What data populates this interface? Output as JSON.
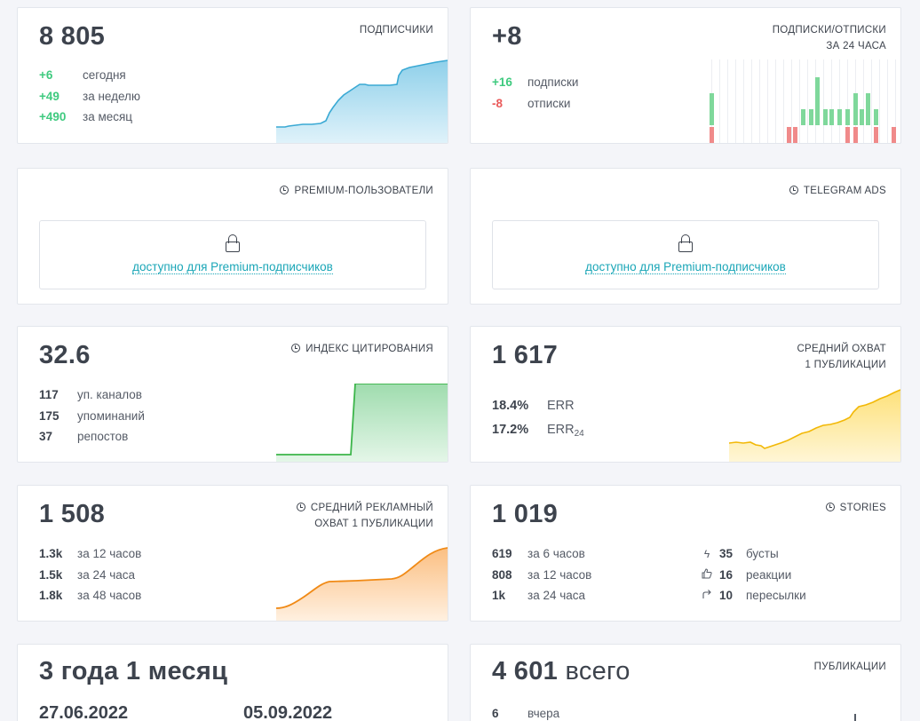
{
  "subscribers": {
    "value": "8 805",
    "title": "ПОДПИСЧИКИ",
    "rows": [
      {
        "v": "+6",
        "l": "сегодня"
      },
      {
        "v": "+49",
        "l": "за неделю"
      },
      {
        "v": "+490",
        "l": "за месяц"
      }
    ]
  },
  "subs_unsubs": {
    "value": "+8",
    "title_line1": "ПОДПИСКИ/ОТПИСКИ",
    "title_line2": "ЗА 24 ЧАСА",
    "rows": [
      {
        "v": "+16",
        "l": "подписки"
      },
      {
        "v": "-8",
        "l": "отписки"
      }
    ]
  },
  "premium_users": {
    "title": "PREMIUM-ПОЛЬЗОВАТЕЛИ",
    "link": "доступно для Premium-подписчиков"
  },
  "telegram_ads": {
    "title": "TELEGRAM ADS",
    "link": "доступно для Premium-подписчиков"
  },
  "citation": {
    "value": "32.6",
    "title": "ИНДЕКС ЦИТИРОВАНИЯ",
    "rows": [
      {
        "v": "117",
        "l": "уп. каналов"
      },
      {
        "v": "175",
        "l": "упоминаний"
      },
      {
        "v": "37",
        "l": "репостов"
      }
    ]
  },
  "avg_reach": {
    "value": "1 617",
    "title_line1": "СРЕДНИЙ ОХВАТ",
    "title_line2": "1 ПУБЛИКАЦИИ",
    "err": {
      "v": "18.4%",
      "l": "ERR"
    },
    "err24": {
      "v": "17.2%",
      "l": "ERR",
      "sub": "24"
    }
  },
  "ad_reach": {
    "value": "1 508",
    "title_line1": "СРЕДНИЙ РЕКЛАМНЫЙ",
    "title_line2": "ОХВАТ 1 ПУБЛИКАЦИИ",
    "rows": [
      {
        "v": "1.3k",
        "l": "за 12 часов"
      },
      {
        "v": "1.5k",
        "l": "за 24 часа"
      },
      {
        "v": "1.8k",
        "l": "за 48 часов"
      }
    ]
  },
  "stories": {
    "value": "1 019",
    "title": "STORIES",
    "rows": [
      {
        "v": "619",
        "l": "за 6 часов"
      },
      {
        "v": "808",
        "l": "за 12 часов"
      },
      {
        "v": "1k",
        "l": "за 24 часа"
      }
    ],
    "right_rows": [
      {
        "icon": "lightning-icon",
        "v": "35",
        "l": "бусты"
      },
      {
        "icon": "thumbs-up-icon",
        "v": "16",
        "l": "реакции"
      },
      {
        "icon": "forward-arrow-icon",
        "v": "10",
        "l": "пересылки"
      }
    ]
  },
  "age": {
    "value": "3 года 1 месяц",
    "date_start": "27.06.2022",
    "date_end": "05.09.2022"
  },
  "publications": {
    "value_num": "4 601",
    "value_suffix": "всего",
    "title": "ПУБЛИКАЦИИ",
    "rows": [
      {
        "v": "6",
        "l": "вчера"
      }
    ]
  },
  "colors": {
    "accent_blue": "#4fb3d9",
    "green": "#3fca7f",
    "red": "#ea5a5a",
    "citation_green": "#3cb54a",
    "reach_yellow": "#f5c518",
    "ad_orange": "#f08a16",
    "link": "#1aa6b7"
  }
}
